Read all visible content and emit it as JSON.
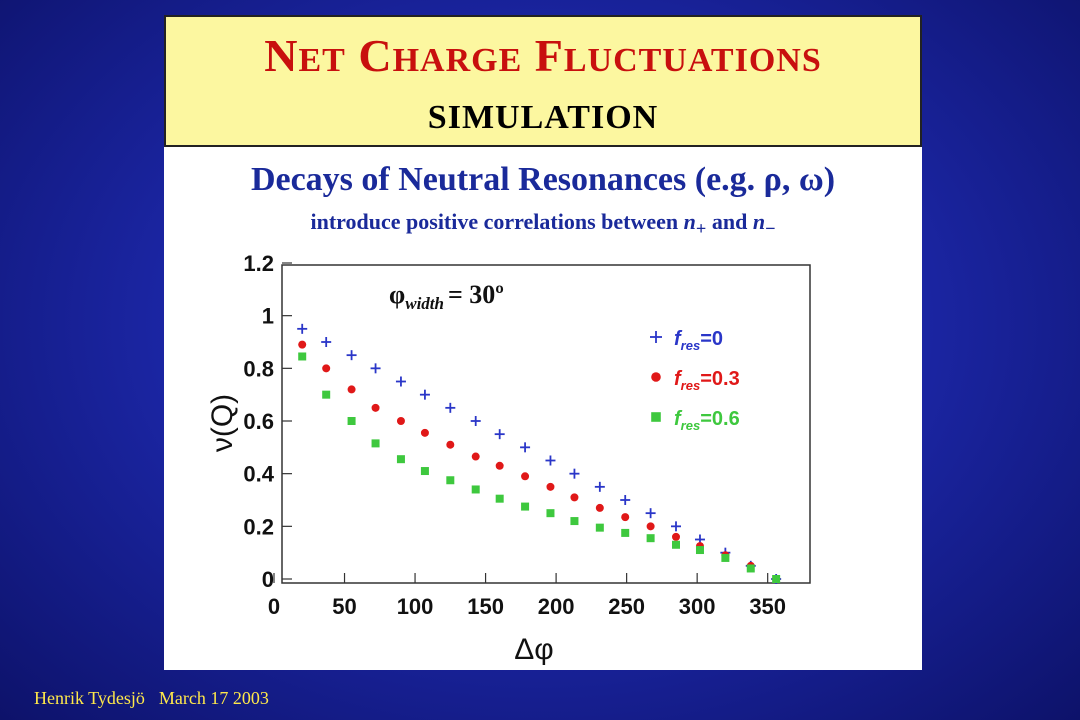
{
  "title": {
    "word1_cap": "N",
    "word1_rest": "ET",
    "word2_cap": "C",
    "word2_rest": "HARGE",
    "word3_cap": "F",
    "word3_rest": "LUCTUATIONS",
    "subtitle": "SIMULATION"
  },
  "heading": {
    "line1_prefix": "Decays of Neutral Resonances (e.g.",
    "line1_sym1": "ρ",
    "line1_sep": ",",
    "line1_sym2": "ω",
    "line1_suffix": ")",
    "line2_prefix": "introduce positive correlations between",
    "line2_var1": "n",
    "line2_sub1": "+",
    "line2_and": "and",
    "line2_var2": "n",
    "line2_sub2": "−"
  },
  "footer": {
    "author": "Henrik Tydesjö",
    "date": "March 17 2003"
  },
  "chart_data": {
    "type": "scatter",
    "xlabel": "Δφ",
    "ylabel": "ν(Q)",
    "xlim": [
      0,
      380
    ],
    "ylim": [
      0,
      1.2
    ],
    "xticks": [
      0,
      50,
      100,
      150,
      200,
      250,
      300,
      350
    ],
    "yticks": [
      0,
      0.2,
      0.4,
      0.6,
      0.8,
      1,
      1.2
    ],
    "ytick_labels": [
      "0",
      "0.2",
      "0.4",
      "0.6",
      "0.8",
      "1",
      "1.2"
    ],
    "annotation": {
      "symbol": "φ",
      "subscript": "width",
      "text": "= 30º"
    },
    "legend_position": "top-right",
    "grid": false,
    "series": [
      {
        "label_f": "f",
        "label_sub": "res",
        "label_val": "=0",
        "marker": "plus",
        "color": "#2a36c8",
        "x": [
          20,
          37,
          55,
          72,
          90,
          107,
          125,
          143,
          160,
          178,
          196,
          213,
          231,
          249,
          267,
          285,
          302,
          320,
          338,
          356
        ],
        "y": [
          0.95,
          0.9,
          0.85,
          0.8,
          0.75,
          0.7,
          0.65,
          0.6,
          0.55,
          0.5,
          0.45,
          0.4,
          0.35,
          0.3,
          0.25,
          0.2,
          0.15,
          0.1,
          0.05,
          0.0
        ]
      },
      {
        "label_f": "f",
        "label_sub": "res",
        "label_val": "=0.3",
        "marker": "circle",
        "color": "#e01818",
        "x": [
          20,
          37,
          55,
          72,
          90,
          107,
          125,
          143,
          160,
          178,
          196,
          213,
          231,
          249,
          267,
          285,
          302,
          320,
          338,
          356
        ],
        "y": [
          0.89,
          0.8,
          0.72,
          0.65,
          0.6,
          0.555,
          0.51,
          0.465,
          0.43,
          0.39,
          0.35,
          0.31,
          0.27,
          0.235,
          0.2,
          0.16,
          0.125,
          0.09,
          0.05,
          0.0
        ]
      },
      {
        "label_f": "f",
        "label_sub": "res",
        "label_val": "=0.6",
        "marker": "square",
        "color": "#3ec83e",
        "x": [
          20,
          37,
          55,
          72,
          90,
          107,
          125,
          143,
          160,
          178,
          196,
          213,
          231,
          249,
          267,
          285,
          302,
          320,
          338,
          356
        ],
        "y": [
          0.845,
          0.7,
          0.6,
          0.515,
          0.455,
          0.41,
          0.375,
          0.34,
          0.305,
          0.275,
          0.25,
          0.22,
          0.195,
          0.175,
          0.155,
          0.13,
          0.11,
          0.08,
          0.04,
          0.0
        ]
      }
    ]
  }
}
